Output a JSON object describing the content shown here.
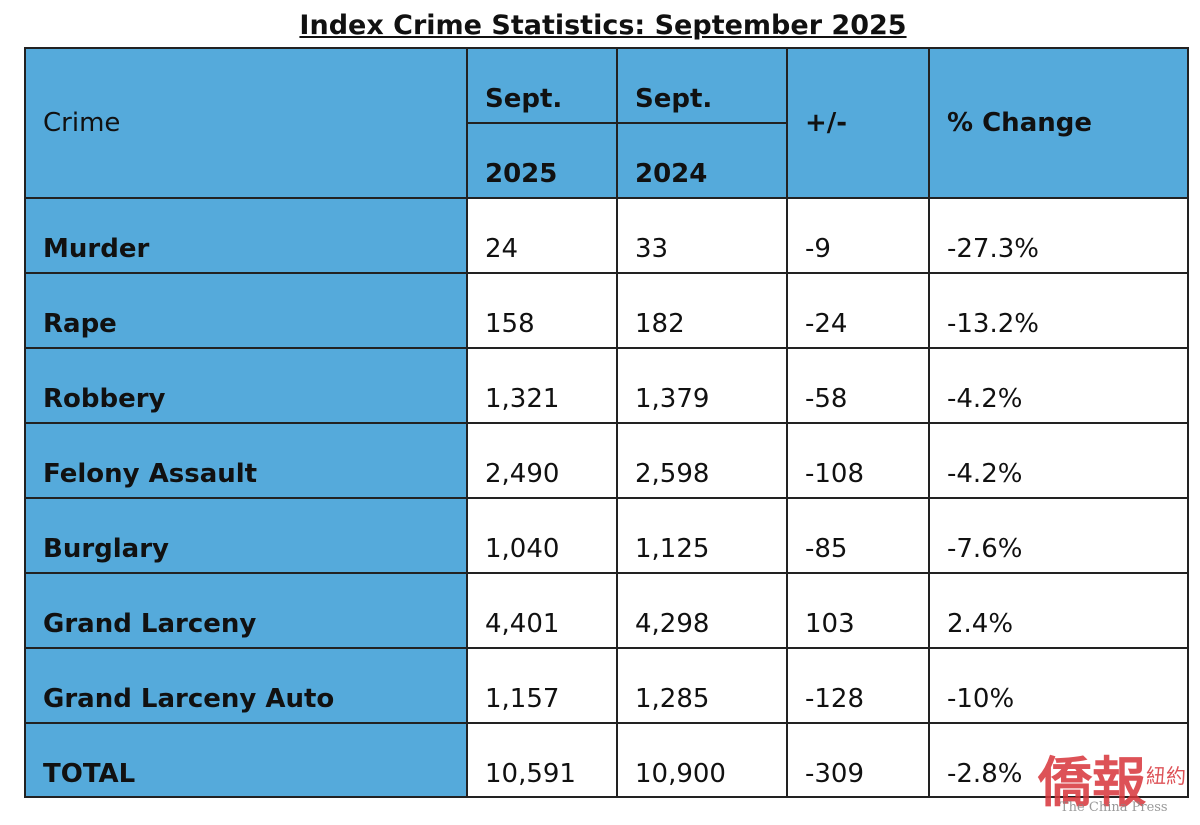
{
  "title": "Index Crime Statistics: September 2025",
  "table": {
    "header": {
      "crime": "Crime",
      "col1": [
        "Sept.",
        "2025"
      ],
      "col2": [
        "Sept.",
        "2024"
      ],
      "diff": "+/-",
      "pct": "% Change"
    },
    "rows": [
      [
        "Murder",
        "24",
        "33",
        "-9",
        "-27.3%"
      ],
      [
        "Rape",
        "158",
        "182",
        "-24",
        "-13.2%"
      ],
      [
        "Robbery",
        "1,321",
        "1,379",
        "-58",
        "-4.2%"
      ],
      [
        "Felony Assault",
        "2,490",
        "2,598",
        "-108",
        "-4.2%"
      ],
      [
        "Burglary",
        "1,040",
        "1,125",
        "-85",
        "-7.6%"
      ],
      [
        "Grand Larceny",
        "4,401",
        "4,298",
        "103",
        "2.4%"
      ],
      [
        "Grand Larceny Auto",
        "1,157",
        "1,285",
        "-128",
        "-10%"
      ],
      [
        "TOTAL",
        "10,591",
        "10,900",
        "-309",
        "-2.8%"
      ]
    ]
  },
  "watermark": {
    "main": "僑報",
    "sub": "紐約",
    "english": "The China Press"
  }
}
